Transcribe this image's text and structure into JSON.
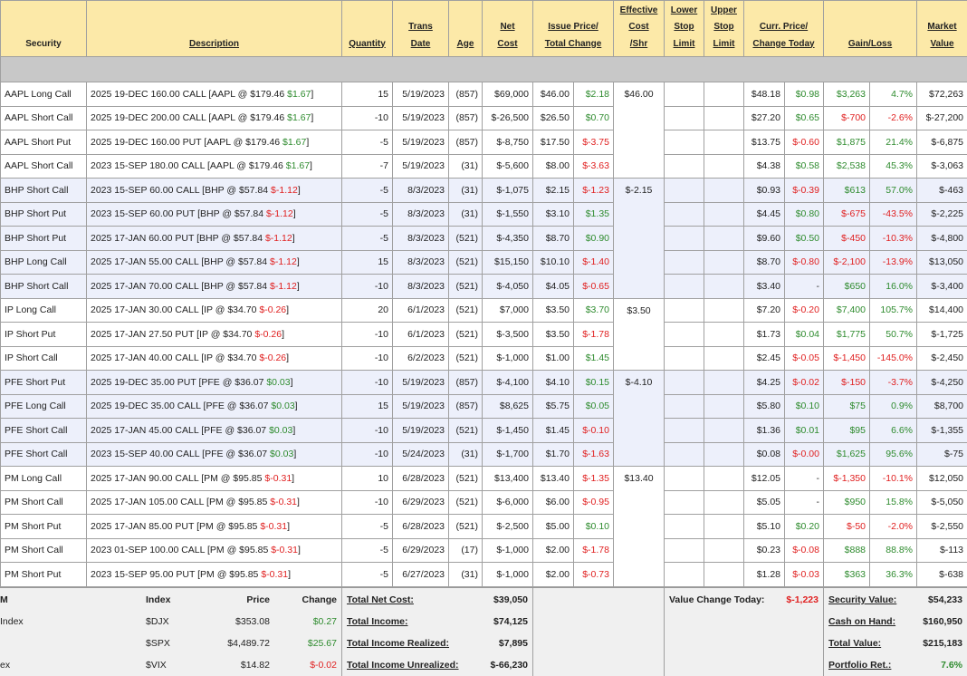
{
  "header": [
    [
      "Security"
    ],
    [
      "Description"
    ],
    [
      "Quantity"
    ],
    [
      "Trans",
      "Date"
    ],
    [
      "Age"
    ],
    [
      "Net",
      "Cost"
    ],
    [
      "Issue Price/",
      "Total Change"
    ],
    [
      "Effective",
      "Cost",
      "/Shr"
    ],
    [
      "Lower",
      "Stop",
      "Limit"
    ],
    [
      "Upper",
      "Stop",
      "Limit"
    ],
    [
      "Curr. Price/",
      "Change Today"
    ],
    [
      "Gain/Loss"
    ],
    [
      "Market",
      "Value"
    ]
  ],
  "groups": [
    {
      "effective_cost": "$46.00",
      "shade": false,
      "rows": [
        {
          "security": "AAPL Long Call",
          "description": [
            "2025 19-DEC 160.00 CALL [AAPL @ $179.46 ",
            "$1.67",
            "]"
          ],
          "quantity": "15",
          "trans_date": "5/19/2023",
          "age": "(857)",
          "net_cost": "$69,000",
          "issue_price": "$46.00",
          "total_change": "$2.18",
          "curr_price": "$48.18",
          "change_today": "$0.98",
          "gain": "$3,263",
          "gain_pct": "4.7%",
          "market_value": "$72,263"
        },
        {
          "security": "AAPL Short Call",
          "description": [
            "2025 19-DEC 200.00 CALL [AAPL @ $179.46 ",
            "$1.67",
            "]"
          ],
          "quantity": "-10",
          "trans_date": "5/19/2023",
          "age": "(857)",
          "net_cost": "$-26,500",
          "issue_price": "$26.50",
          "total_change": "$0.70",
          "curr_price": "$27.20",
          "change_today": "$0.65",
          "gain": "$-700",
          "gain_pct": "-2.6%",
          "market_value": "$-27,200"
        },
        {
          "security": "AAPL Short Put",
          "description": [
            "2025 19-DEC 160.00 PUT [AAPL @ $179.46 ",
            "$1.67",
            "]"
          ],
          "quantity": "-5",
          "trans_date": "5/19/2023",
          "age": "(857)",
          "net_cost": "$-8,750",
          "issue_price": "$17.50",
          "total_change": "$-3.75",
          "curr_price": "$13.75",
          "change_today": "$-0.60",
          "gain": "$1,875",
          "gain_pct": "21.4%",
          "market_value": "$-6,875"
        },
        {
          "security": "AAPL Short Call",
          "description": [
            "2023 15-SEP 180.00 CALL [AAPL @ $179.46 ",
            "$1.67",
            "]"
          ],
          "quantity": "-7",
          "trans_date": "5/19/2023",
          "age": "(31)",
          "net_cost": "$-5,600",
          "issue_price": "$8.00",
          "total_change": "$-3.63",
          "curr_price": "$4.38",
          "change_today": "$0.58",
          "gain": "$2,538",
          "gain_pct": "45.3%",
          "market_value": "$-3,063"
        }
      ]
    },
    {
      "effective_cost": "$-2.15",
      "shade": true,
      "rows": [
        {
          "security": "BHP Short Call",
          "description": [
            "2023 15-SEP 60.00 CALL [BHP @ $57.84 ",
            "$-1.12",
            "]"
          ],
          "quantity": "-5",
          "trans_date": "8/3/2023",
          "age": "(31)",
          "net_cost": "$-1,075",
          "issue_price": "$2.15",
          "total_change": "$-1.23",
          "curr_price": "$0.93",
          "change_today": "$-0.39",
          "gain": "$613",
          "gain_pct": "57.0%",
          "market_value": "$-463"
        },
        {
          "security": "BHP Short Put",
          "description": [
            "2023 15-SEP 60.00 PUT [BHP @ $57.84 ",
            "$-1.12",
            "]"
          ],
          "quantity": "-5",
          "trans_date": "8/3/2023",
          "age": "(31)",
          "net_cost": "$-1,550",
          "issue_price": "$3.10",
          "total_change": "$1.35",
          "curr_price": "$4.45",
          "change_today": "$0.80",
          "gain": "$-675",
          "gain_pct": "-43.5%",
          "market_value": "$-2,225"
        },
        {
          "security": "BHP Short Put",
          "description": [
            "2025 17-JAN 60.00 PUT [BHP @ $57.84 ",
            "$-1.12",
            "]"
          ],
          "quantity": "-5",
          "trans_date": "8/3/2023",
          "age": "(521)",
          "net_cost": "$-4,350",
          "issue_price": "$8.70",
          "total_change": "$0.90",
          "curr_price": "$9.60",
          "change_today": "$0.50",
          "gain": "$-450",
          "gain_pct": "-10.3%",
          "market_value": "$-4,800"
        },
        {
          "security": "BHP Long Call",
          "description": [
            "2025 17-JAN 55.00 CALL [BHP @ $57.84 ",
            "$-1.12",
            "]"
          ],
          "quantity": "15",
          "trans_date": "8/3/2023",
          "age": "(521)",
          "net_cost": "$15,150",
          "issue_price": "$10.10",
          "total_change": "$-1.40",
          "curr_price": "$8.70",
          "change_today": "$-0.80",
          "gain": "$-2,100",
          "gain_pct": "-13.9%",
          "market_value": "$13,050"
        },
        {
          "security": "BHP Short Call",
          "description": [
            "2025 17-JAN 70.00 CALL [BHP @ $57.84 ",
            "$-1.12",
            "]"
          ],
          "quantity": "-10",
          "trans_date": "8/3/2023",
          "age": "(521)",
          "net_cost": "$-4,050",
          "issue_price": "$4.05",
          "total_change": "$-0.65",
          "curr_price": "$3.40",
          "change_today": "-",
          "gain": "$650",
          "gain_pct": "16.0%",
          "market_value": "$-3,400"
        }
      ]
    },
    {
      "effective_cost": "$3.50",
      "shade": false,
      "rows": [
        {
          "security": "IP Long Call",
          "description": [
            "2025 17-JAN 30.00 CALL [IP @ $34.70 ",
            "$-0.26",
            "]"
          ],
          "quantity": "20",
          "trans_date": "6/1/2023",
          "age": "(521)",
          "net_cost": "$7,000",
          "issue_price": "$3.50",
          "total_change": "$3.70",
          "curr_price": "$7.20",
          "change_today": "$-0.20",
          "gain": "$7,400",
          "gain_pct": "105.7%",
          "market_value": "$14,400"
        },
        {
          "security": "IP Short Put",
          "description": [
            "2025 17-JAN 27.50 PUT [IP @ $34.70 ",
            "$-0.26",
            "]"
          ],
          "quantity": "-10",
          "trans_date": "6/1/2023",
          "age": "(521)",
          "net_cost": "$-3,500",
          "issue_price": "$3.50",
          "total_change": "$-1.78",
          "curr_price": "$1.73",
          "change_today": "$0.04",
          "gain": "$1,775",
          "gain_pct": "50.7%",
          "market_value": "$-1,725"
        },
        {
          "security": "IP Short Call",
          "description": [
            "2025 17-JAN 40.00 CALL [IP @ $34.70 ",
            "$-0.26",
            "]"
          ],
          "quantity": "-10",
          "trans_date": "6/2/2023",
          "age": "(521)",
          "net_cost": "$-1,000",
          "issue_price": "$1.00",
          "total_change": "$1.45",
          "curr_price": "$2.45",
          "change_today": "$-0.05",
          "gain": "$-1,450",
          "gain_pct": "-145.0%",
          "market_value": "$-2,450"
        }
      ]
    },
    {
      "effective_cost": "$-4.10",
      "shade": true,
      "rows": [
        {
          "security": "PFE Short Put",
          "description": [
            "2025 19-DEC 35.00 PUT [PFE @ $36.07 ",
            "$0.03",
            "]"
          ],
          "quantity": "-10",
          "trans_date": "5/19/2023",
          "age": "(857)",
          "net_cost": "$-4,100",
          "issue_price": "$4.10",
          "total_change": "$0.15",
          "curr_price": "$4.25",
          "change_today": "$-0.02",
          "gain": "$-150",
          "gain_pct": "-3.7%",
          "market_value": "$-4,250"
        },
        {
          "security": "PFE Long Call",
          "description": [
            "2025 19-DEC 35.00 CALL [PFE @ $36.07 ",
            "$0.03",
            "]"
          ],
          "quantity": "15",
          "trans_date": "5/19/2023",
          "age": "(857)",
          "net_cost": "$8,625",
          "issue_price": "$5.75",
          "total_change": "$0.05",
          "curr_price": "$5.80",
          "change_today": "$0.10",
          "gain": "$75",
          "gain_pct": "0.9%",
          "market_value": "$8,700"
        },
        {
          "security": "PFE Short Call",
          "description": [
            "2025 17-JAN 45.00 CALL [PFE @ $36.07 ",
            "$0.03",
            "]"
          ],
          "quantity": "-10",
          "trans_date": "5/19/2023",
          "age": "(521)",
          "net_cost": "$-1,450",
          "issue_price": "$1.45",
          "total_change": "$-0.10",
          "curr_price": "$1.36",
          "change_today": "$0.01",
          "gain": "$95",
          "gain_pct": "6.6%",
          "market_value": "$-1,355"
        },
        {
          "security": "PFE Short Call",
          "description": [
            "2023 15-SEP 40.00 CALL [PFE @ $36.07 ",
            "$0.03",
            "]"
          ],
          "quantity": "-10",
          "trans_date": "5/24/2023",
          "age": "(31)",
          "net_cost": "$-1,700",
          "issue_price": "$1.70",
          "total_change": "$-1.63",
          "curr_price": "$0.08",
          "change_today": "$-0.00",
          "gain": "$1,625",
          "gain_pct": "95.6%",
          "market_value": "$-75"
        }
      ]
    },
    {
      "effective_cost": "$13.40",
      "shade": false,
      "rows": [
        {
          "security": "PM Long Call",
          "description": [
            "2025 17-JAN 90.00 CALL [PM @ $95.85 ",
            "$-0.31",
            "]"
          ],
          "quantity": "10",
          "trans_date": "6/28/2023",
          "age": "(521)",
          "net_cost": "$13,400",
          "issue_price": "$13.40",
          "total_change": "$-1.35",
          "curr_price": "$12.05",
          "change_today": "-",
          "gain": "$-1,350",
          "gain_pct": "-10.1%",
          "market_value": "$12,050"
        },
        {
          "security": "PM Short Call",
          "description": [
            "2025 17-JAN 105.00 CALL [PM @ $95.85 ",
            "$-0.31",
            "]"
          ],
          "quantity": "-10",
          "trans_date": "6/29/2023",
          "age": "(521)",
          "net_cost": "$-6,000",
          "issue_price": "$6.00",
          "total_change": "$-0.95",
          "curr_price": "$5.05",
          "change_today": "-",
          "gain": "$950",
          "gain_pct": "15.8%",
          "market_value": "$-5,050"
        },
        {
          "security": "PM Short Put",
          "description": [
            "2025 17-JAN 85.00 PUT [PM @ $95.85 ",
            "$-0.31",
            "]"
          ],
          "quantity": "-5",
          "trans_date": "6/28/2023",
          "age": "(521)",
          "net_cost": "$-2,500",
          "issue_price": "$5.00",
          "total_change": "$0.10",
          "curr_price": "$5.10",
          "change_today": "$0.20",
          "gain": "$-50",
          "gain_pct": "-2.0%",
          "market_value": "$-2,550"
        },
        {
          "security": "PM Short Call",
          "description": [
            "2023 01-SEP 100.00 CALL [PM @ $95.85 ",
            "$-0.31",
            "]"
          ],
          "quantity": "-5",
          "trans_date": "6/29/2023",
          "age": "(17)",
          "net_cost": "$-1,000",
          "issue_price": "$2.00",
          "total_change": "$-1.78",
          "curr_price": "$0.23",
          "change_today": "$-0.08",
          "gain": "$888",
          "gain_pct": "88.8%",
          "market_value": "$-113"
        },
        {
          "security": "PM Short Put",
          "description": [
            "2023 15-SEP 95.00 PUT [PM @ $95.85 ",
            "$-0.31",
            "]"
          ],
          "quantity": "-5",
          "trans_date": "6/27/2023",
          "age": "(31)",
          "net_cost": "$-1,000",
          "issue_price": "$2.00",
          "total_change": "$-0.73",
          "curr_price": "$1.28",
          "change_today": "$-0.03",
          "gain": "$363",
          "gain_pct": "36.3%",
          "market_value": "$-638"
        }
      ]
    }
  ],
  "indices": {
    "header": [
      "M",
      "Index",
      "Price",
      "Change"
    ],
    "rows": [
      {
        "name": "Index",
        "symbol": "$DJX",
        "price": "$353.08",
        "change": "$0.27"
      },
      {
        "name": null,
        "symbol": "$SPX",
        "price": "$4,489.72",
        "change": "$25.67"
      },
      {
        "name": "ex",
        "symbol": "$VIX",
        "price": "$14.82",
        "change": "$-0.02"
      }
    ]
  },
  "totals": [
    {
      "label": "Total Net Cost:",
      "value": "$39,050"
    },
    {
      "label": "Total Income:",
      "value": "$74,125"
    },
    {
      "label": "Total Income Realized:",
      "value": "$7,895"
    },
    {
      "label": "Total Income Unrealized:",
      "value": "$-66,230"
    }
  ],
  "value_change_today": {
    "label": "Value Change Today:",
    "value": "$-1,223"
  },
  "summary": [
    {
      "label": "Security Value:",
      "value": "$54,233"
    },
    {
      "label": "Cash on Hand:",
      "value": "$160,950"
    },
    {
      "label": "Total Value:",
      "value": "$215,183"
    },
    {
      "label": "Portfolio Ret.:",
      "value": "7.6%"
    }
  ]
}
